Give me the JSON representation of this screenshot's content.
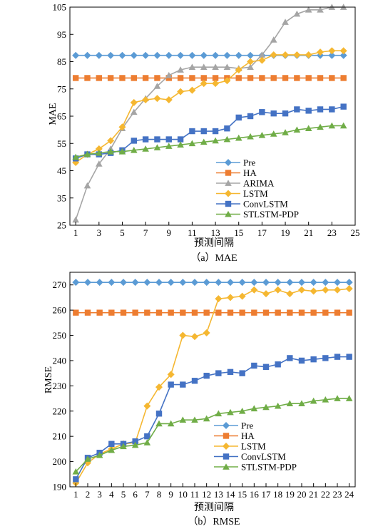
{
  "chart_data": [
    {
      "type": "line",
      "caption": "（a）MAE",
      "xlabel": "预测间隔",
      "ylabel": "MAE",
      "xlim": [
        0.5,
        25
      ],
      "ylim": [
        25,
        105
      ],
      "xticks": [
        1,
        3,
        5,
        7,
        9,
        11,
        13,
        15,
        17,
        19,
        21,
        23,
        25
      ],
      "yticks": [
        25,
        35,
        45,
        55,
        65,
        75,
        85,
        95,
        105
      ],
      "grid": false,
      "legend_position": "bottom-right",
      "x": [
        1,
        2,
        3,
        4,
        5,
        6,
        7,
        8,
        9,
        10,
        11,
        12,
        13,
        14,
        15,
        16,
        17,
        18,
        19,
        20,
        21,
        22,
        23,
        24
      ],
      "series": [
        {
          "name": "Pre",
          "color": "#5B9BD5",
          "marker": "diamond",
          "values": [
            87.3,
            87.3,
            87.3,
            87.3,
            87.3,
            87.3,
            87.3,
            87.3,
            87.3,
            87.3,
            87.3,
            87.3,
            87.3,
            87.3,
            87.3,
            87.3,
            87.3,
            87.3,
            87.3,
            87.3,
            87.3,
            87.3,
            87.3,
            87.3
          ]
        },
        {
          "name": "HA",
          "color": "#ED7D31",
          "marker": "square",
          "values": [
            79.0,
            79.0,
            79.0,
            79.0,
            79.0,
            79.0,
            79.0,
            79.0,
            79.0,
            79.0,
            79.0,
            79.0,
            79.0,
            79.0,
            79.0,
            79.0,
            79.0,
            79.0,
            79.0,
            79.0,
            79.0,
            79.0,
            79.0,
            79.0
          ]
        },
        {
          "name": "ARIMA",
          "color": "#A5A5A5",
          "marker": "triangle",
          "values": [
            27.0,
            39.5,
            47.5,
            53.0,
            60.5,
            66.5,
            71.5,
            76.0,
            80.0,
            82.0,
            83.0,
            83.0,
            83.0,
            83.0,
            82.5,
            83.0,
            87.5,
            93.0,
            99.5,
            102.5,
            104.0,
            104.0,
            105.0,
            105.0
          ]
        },
        {
          "name": "LSTM",
          "color": "#F5B731",
          "marker": "diamond",
          "values": [
            48.0,
            51.0,
            53.0,
            56.0,
            61.0,
            70.0,
            71.0,
            71.5,
            71.0,
            74.0,
            74.5,
            77.0,
            77.0,
            78.0,
            82.0,
            85.0,
            85.5,
            87.5,
            87.5,
            87.5,
            87.5,
            88.5,
            89.0,
            89.0
          ]
        },
        {
          "name": "ConvLSTM",
          "color": "#4472C4",
          "marker": "square",
          "values": [
            49.5,
            51.0,
            51.0,
            51.5,
            52.5,
            56.0,
            56.5,
            56.5,
            56.5,
            56.5,
            59.5,
            59.5,
            59.5,
            60.5,
            64.5,
            65.0,
            66.5,
            66.0,
            66.0,
            67.5,
            67.0,
            67.5,
            67.5,
            68.5
          ]
        },
        {
          "name": "STLSTM-PDP",
          "color": "#70AD47",
          "marker": "triangle",
          "values": [
            50.0,
            51.0,
            51.5,
            52.0,
            52.0,
            52.5,
            53.0,
            53.5,
            54.0,
            54.5,
            55.0,
            55.5,
            56.0,
            56.5,
            57.0,
            57.5,
            58.0,
            58.5,
            59.0,
            60.0,
            60.5,
            61.0,
            61.5,
            61.5
          ]
        }
      ]
    },
    {
      "type": "line",
      "caption": "（b）RMSE",
      "xlabel": "预测间隔",
      "ylabel": "RMSE",
      "xlim": [
        0.5,
        24.5
      ],
      "ylim": [
        190,
        275
      ],
      "xticks": [
        1,
        2,
        3,
        4,
        5,
        6,
        7,
        8,
        9,
        10,
        11,
        12,
        13,
        14,
        15,
        16,
        17,
        18,
        19,
        20,
        21,
        22,
        23,
        24
      ],
      "yticks": [
        190,
        200,
        210,
        220,
        230,
        240,
        250,
        260,
        270
      ],
      "grid": false,
      "legend_position": "bottom-right",
      "x": [
        1,
        2,
        3,
        4,
        5,
        6,
        7,
        8,
        9,
        10,
        11,
        12,
        13,
        14,
        15,
        16,
        17,
        18,
        19,
        20,
        21,
        22,
        23,
        24
      ],
      "series": [
        {
          "name": "Pre",
          "color": "#5B9BD5",
          "marker": "diamond",
          "values": [
            271,
            271,
            271,
            271,
            271,
            271,
            271,
            271,
            271,
            271,
            271,
            271,
            271,
            271,
            271,
            271,
            271,
            271,
            271,
            271,
            271,
            271,
            271,
            271
          ]
        },
        {
          "name": "HA",
          "color": "#ED7D31",
          "marker": "square",
          "values": [
            259,
            259,
            259,
            259,
            259,
            259,
            259,
            259,
            259,
            259,
            259,
            259,
            259,
            259,
            259,
            259,
            259,
            259,
            259,
            259,
            259,
            259,
            259,
            259
          ]
        },
        {
          "name": "LSTM",
          "color": "#F5B731",
          "marker": "diamond",
          "values": [
            191.5,
            199.5,
            203.0,
            205.0,
            207.0,
            207.5,
            222.0,
            229.5,
            234.5,
            250.0,
            249.5,
            251.0,
            264.5,
            265.0,
            265.5,
            268.0,
            266.5,
            268.0,
            266.5,
            268.0,
            267.5,
            268.0,
            268.0,
            268.5
          ]
        },
        {
          "name": "ConvLSTM",
          "color": "#4472C4",
          "marker": "square",
          "values": [
            193.0,
            201.5,
            203.5,
            207.0,
            207.0,
            208.0,
            210.0,
            219.0,
            230.5,
            230.5,
            232.0,
            234.0,
            235.0,
            235.5,
            235.0,
            238.0,
            237.5,
            238.5,
            241.0,
            240.0,
            240.5,
            241.0,
            241.5,
            241.5
          ]
        },
        {
          "name": "STLSTM-PDP",
          "color": "#70AD47",
          "marker": "triangle",
          "values": [
            196.0,
            201.0,
            202.5,
            204.5,
            206.0,
            206.5,
            207.5,
            215.0,
            215.0,
            216.5,
            216.5,
            217.0,
            219.0,
            219.5,
            220.0,
            221.0,
            221.5,
            222.0,
            223.0,
            223.0,
            224.0,
            224.5,
            225.0,
            225.0
          ]
        }
      ]
    }
  ]
}
